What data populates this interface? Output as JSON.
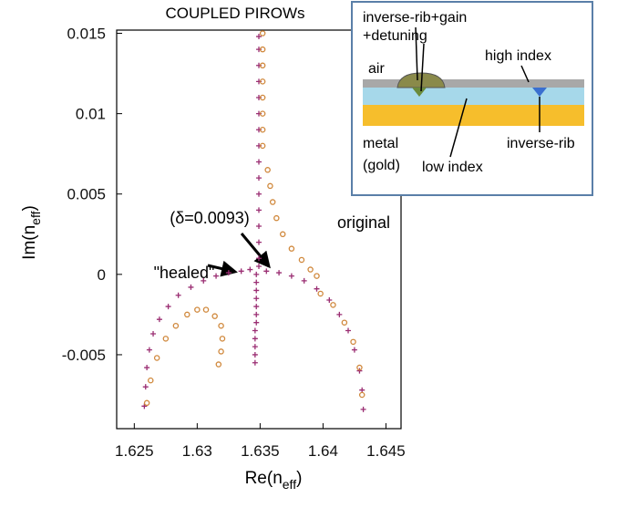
{
  "chart_data": {
    "type": "scatter",
    "title": "COUPLED  PIROWs",
    "xlabel": [
      "Re(n",
      "eff",
      ")"
    ],
    "ylabel": [
      "Im(n",
      "eff",
      ")"
    ],
    "xlim": [
      1.6236,
      1.6462
    ],
    "ylim": [
      -0.0096,
      0.0152
    ],
    "xticks": [
      1.625,
      1.63,
      1.635,
      1.64,
      1.645
    ],
    "yticks": [
      -0.005,
      0,
      0.005,
      0.01,
      0.015
    ],
    "annotations": [
      "\"healed\"",
      "(δ=0.0093)",
      "original"
    ],
    "series": [
      {
        "marker": "plus",
        "color": "#9a2d72",
        "x": [
          1.6349,
          1.6349,
          1.6349,
          1.6349,
          1.6349,
          1.6349,
          1.6349,
          1.6349,
          1.6349,
          1.6349,
          1.6349,
          1.6349,
          1.6349,
          1.6349,
          1.6349,
          1.6349,
          1.6347,
          1.6347,
          1.6347,
          1.6347,
          1.6347,
          1.6347,
          1.6347,
          1.6346,
          1.6346,
          1.6346,
          1.6346,
          1.6346,
          1.6342,
          1.6335,
          1.6325,
          1.6315,
          1.6305,
          1.6295,
          1.6285,
          1.6277,
          1.627,
          1.6265,
          1.6262,
          1.626,
          1.6259,
          1.6258,
          1.6355,
          1.6365,
          1.6375,
          1.6385,
          1.6395,
          1.6405,
          1.6413,
          1.642,
          1.6425,
          1.6429,
          1.6431,
          1.6432
        ],
        "values": [
          0.0148,
          0.014,
          0.013,
          0.012,
          0.011,
          0.01,
          0.009,
          0.008,
          0.007,
          0.006,
          0.005,
          0.004,
          0.003,
          0.002,
          0.001,
          0.0005,
          0,
          -0.0005,
          -0.001,
          -0.0015,
          -0.002,
          -0.0025,
          -0.003,
          -0.0035,
          -0.004,
          -0.0045,
          -0.005,
          -0.0055,
          0.0003,
          0.0002,
          0.0001,
          -0.0001,
          -0.0004,
          -0.0008,
          -0.0013,
          -0.002,
          -0.0028,
          -0.0037,
          -0.0047,
          -0.0058,
          -0.007,
          -0.0082,
          0.0002,
          0.0001,
          -0.0001,
          -0.0004,
          -0.0009,
          -0.0016,
          -0.0025,
          -0.0035,
          -0.0047,
          -0.006,
          -0.0072,
          -0.0084
        ]
      },
      {
        "marker": "circle",
        "color": "#d0883c",
        "x": [
          1.6352,
          1.6352,
          1.6352,
          1.6352,
          1.6352,
          1.6352,
          1.6352,
          1.6352,
          1.6356,
          1.6358,
          1.636,
          1.6363,
          1.6368,
          1.6375,
          1.6383,
          1.639,
          1.6395,
          1.6317,
          1.6319,
          1.632,
          1.6319,
          1.6314,
          1.6307,
          1.63,
          1.6292,
          1.6283,
          1.6275,
          1.6268,
          1.6263,
          1.626,
          1.6398,
          1.6408,
          1.6417,
          1.6424,
          1.6429,
          1.6431
        ],
        "values": [
          0.015,
          0.014,
          0.013,
          0.012,
          0.011,
          0.01,
          0.009,
          0.008,
          0.0065,
          0.0055,
          0.0045,
          0.0035,
          0.0025,
          0.0016,
          0.0009,
          0.0003,
          -0.0001,
          -0.0056,
          -0.0048,
          -0.004,
          -0.0032,
          -0.0026,
          -0.0022,
          -0.0022,
          -0.0025,
          -0.0032,
          -0.004,
          -0.0052,
          -0.0066,
          -0.008,
          -0.0012,
          -0.0019,
          -0.003,
          -0.0042,
          -0.0058,
          -0.0075
        ]
      }
    ]
  },
  "inset": {
    "labels": [
      "inverse-rib+gain",
      "+detuning",
      "air",
      "high index",
      "metal",
      "(gold)",
      "low index",
      "inverse-rib"
    ]
  }
}
